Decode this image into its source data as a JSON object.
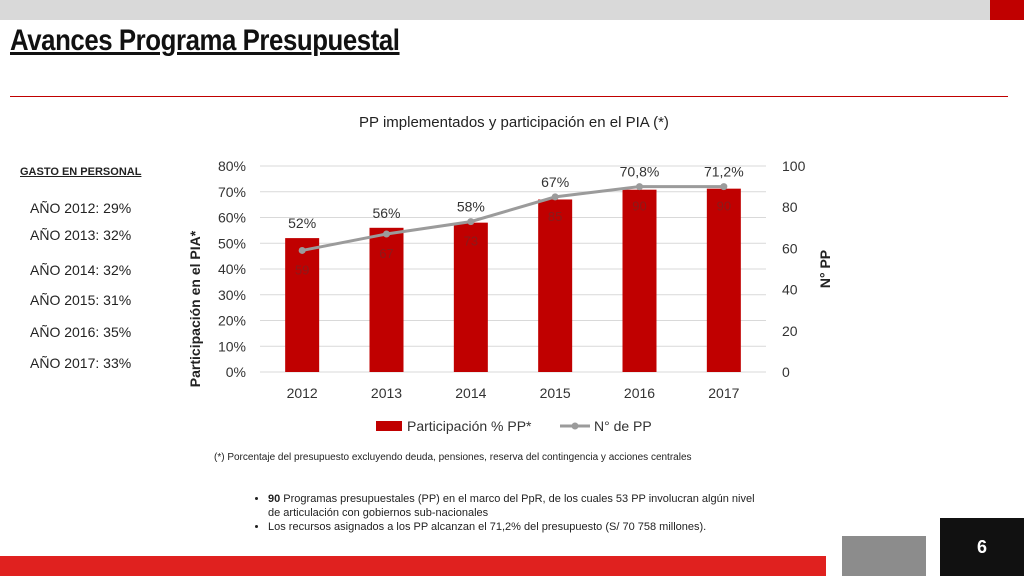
{
  "slide": {
    "title": "Avances Programa Presupuestal",
    "page_number": "6",
    "colors": {
      "accent": "#c00000",
      "bar": "#c00000",
      "line": "#9b9b9b",
      "top_bar": "#d9d9d9",
      "bottom_red": "#e0211f",
      "bottom_gray": "#8c8c8c"
    }
  },
  "sidebar": {
    "heading": "GASTO EN PERSONAL",
    "items": [
      "AÑO 2012: 29%",
      "AÑO 2013: 32%",
      "AÑO 2014: 32%",
      "AÑO 2015: 31%",
      "AÑO 2016: 35%",
      "AÑO 2017: 33%"
    ]
  },
  "chart_data": {
    "type": "bar",
    "title": "PP implementados y participación en el PIA (*)",
    "categories": [
      "2012",
      "2013",
      "2014",
      "2015",
      "2016",
      "2017"
    ],
    "ylabel": "Participación en el PIA*",
    "y2label": "N° PP",
    "ylim": [
      0,
      80
    ],
    "y_ticks": [
      "0%",
      "10%",
      "20%",
      "30%",
      "40%",
      "50%",
      "60%",
      "70%",
      "80%"
    ],
    "y2lim": [
      0,
      100
    ],
    "y2_ticks": [
      "0",
      "20",
      "40",
      "60",
      "80",
      "100"
    ],
    "grid": true,
    "legend": "bottom",
    "series": [
      {
        "name": "Participación % PP*",
        "type": "bar",
        "axis": "left",
        "values": [
          52,
          56,
          58,
          67,
          70.8,
          71.2
        ],
        "labels": [
          "52%",
          "56%",
          "58%",
          "67%",
          "70,8%",
          "71,2%"
        ]
      },
      {
        "name": "N° de PP",
        "type": "line",
        "axis": "right",
        "values": [
          59,
          67,
          73,
          85,
          90,
          90
        ],
        "labels": [
          "59",
          "67",
          "73",
          "85",
          "90",
          "90"
        ]
      }
    ]
  },
  "footnote": "(*) Porcentaje del presupuesto excluyendo deuda, pensiones, reserva del contingencia y acciones centrales",
  "bullets": [
    {
      "bold": "90",
      "text": " Programas presupuestales (PP) en el marco del PpR, de los cuales 53 PP  involucran algún nivel de articulación con gobiernos sub-nacionales"
    },
    {
      "bold": "",
      "text": "Los recursos asignados a los PP alcanzan el 71,2% del presupuesto  (S/ 70 758 millones)."
    }
  ]
}
